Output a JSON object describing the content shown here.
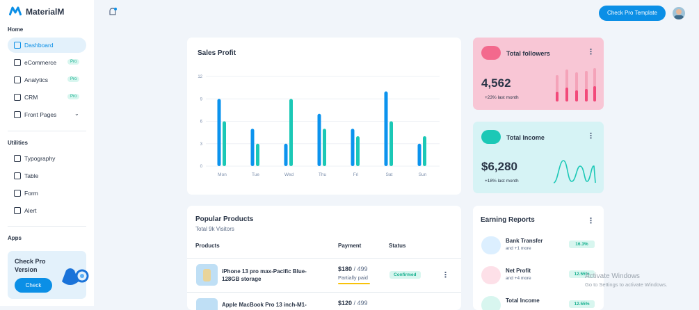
{
  "brand": "MaterialM",
  "header": {
    "button": "Check Pro Template"
  },
  "sidebar": {
    "sections": [
      {
        "title": "Home",
        "items": [
          {
            "label": "Dashboard"
          },
          {
            "label": "eCommerce",
            "badge": "Pro"
          },
          {
            "label": "Analytics",
            "badge": "Pro"
          },
          {
            "label": "CRM",
            "badge": "Pro"
          },
          {
            "label": "Front Pages"
          }
        ]
      },
      {
        "title": "Utilities",
        "items": [
          {
            "label": "Typography"
          },
          {
            "label": "Table"
          },
          {
            "label": "Form"
          },
          {
            "label": "Alert"
          }
        ]
      },
      {
        "title": "Apps",
        "items": []
      }
    ],
    "promo": {
      "title": "Check Pro Version",
      "button": "Check"
    }
  },
  "chart_data": {
    "type": "bar",
    "title": "Sales Profit",
    "categories": [
      "Mon",
      "Tue",
      "Wed",
      "Thu",
      "Fri",
      "Sat",
      "Sun"
    ],
    "series": [
      {
        "color": "#0b93ee",
        "values": [
          9,
          5,
          3,
          7,
          5,
          10,
          3
        ]
      },
      {
        "color": "#1bc8b6",
        "values": [
          6,
          3,
          9,
          5,
          4,
          6,
          4
        ]
      }
    ],
    "ylim": [
      0,
      12
    ],
    "yticks": [
      0,
      3,
      6,
      9,
      12
    ],
    "grid": true
  },
  "followers": {
    "title": "Total followers",
    "value": "4,562",
    "note": "+23% last month"
  },
  "income": {
    "title": "Total Income",
    "value": "$6,280",
    "note": "+18% last month"
  },
  "products": {
    "title": "Popular Products",
    "subtitle": "Total 9k Visitors",
    "columns": [
      "Products",
      "Payment",
      "Status"
    ],
    "rows": [
      {
        "name": "iPhone 13 pro max-Pacific Blue-128GB storage",
        "price": "$180",
        "total": "/ 499",
        "payment": "Partially paid",
        "status": "Confirmed"
      },
      {
        "name": "Apple MacBook Pro 13 inch-M1-",
        "price": "$120",
        "total": "/ 499"
      }
    ]
  },
  "earnings": {
    "title": "Earning Reports",
    "items": [
      {
        "label": "Bank Transfer",
        "more": "and +1 more",
        "change": "16.3%"
      },
      {
        "label": "Net Profit",
        "more": "and +4 more",
        "change": "12.55%"
      },
      {
        "label": "Total Income",
        "change": "12.55%"
      }
    ]
  },
  "watermark": {
    "title": "Activate Windows",
    "text": "Go to Settings to activate Windows."
  }
}
